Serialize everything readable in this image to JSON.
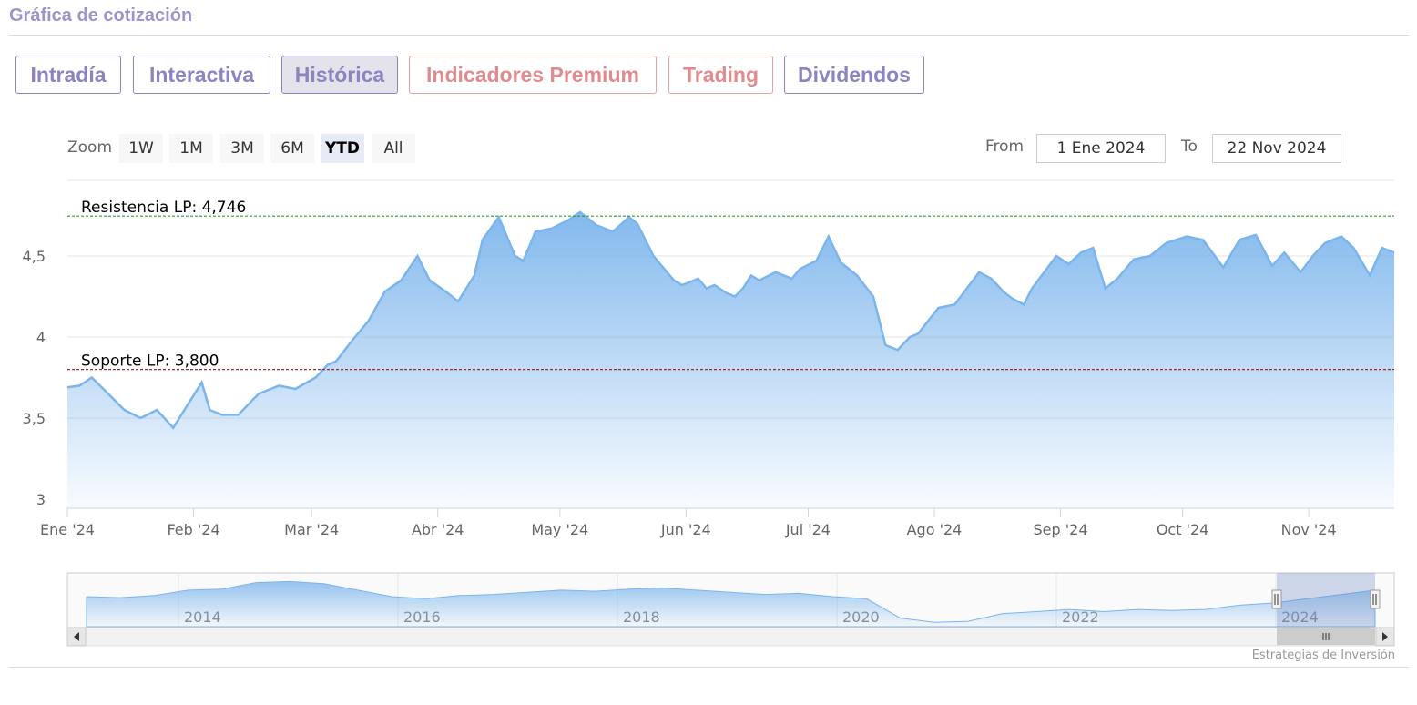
{
  "section_title": "Gráfica de cotización",
  "tabs": [
    {
      "label": "Intradía",
      "style": "purple",
      "active": false
    },
    {
      "label": "Interactiva",
      "style": "purple",
      "active": false
    },
    {
      "label": "Histórica",
      "style": "purple",
      "active": true
    },
    {
      "label": "Indicadores Premium",
      "style": "pink",
      "active": false
    },
    {
      "label": "Trading",
      "style": "pink",
      "active": false
    },
    {
      "label": "Dividendos",
      "style": "purple",
      "active": false
    }
  ],
  "zoom": {
    "label": "Zoom",
    "buttons": [
      "1W",
      "1M",
      "3M",
      "6M",
      "YTD",
      "All"
    ],
    "selected": "YTD"
  },
  "range": {
    "from_label": "From",
    "from_value": "1 Ene 2024",
    "to_label": "To",
    "to_value": "22 Nov 2024"
  },
  "credits": "Estrategias de Inversión",
  "colors": {
    "accent_purple": "#8a84bf",
    "accent_pink": "#e08b8f",
    "series": "#7cb5ec",
    "resistance": "#2ca02c",
    "support": "#a52a2a"
  },
  "chart_data": {
    "type": "area",
    "y_ticks": [
      "3",
      "3,5",
      "4",
      "4,5"
    ],
    "ylim": [
      3,
      5
    ],
    "x_ticks": [
      "Ene '24",
      "Feb '24",
      "Mar '24",
      "Abr '24",
      "May '24",
      "Jun '24",
      "Jul '24",
      "Ago '24",
      "Sep '24",
      "Oct '24",
      "Nov '24"
    ],
    "xlim_days": [
      0,
      326
    ],
    "series": [
      {
        "x_days": [
          0,
          3,
          6,
          10,
          14,
          18,
          22,
          26,
          30,
          33,
          35,
          38,
          42,
          47,
          52,
          56,
          61,
          64,
          66,
          70,
          74,
          78,
          82,
          86,
          89,
          93,
          96,
          100,
          102,
          106,
          110,
          112,
          115,
          119,
          123,
          126,
          130,
          134,
          138,
          140,
          144,
          149,
          151,
          153,
          155,
          157,
          159,
          162,
          164,
          166,
          168,
          170,
          174,
          178,
          180,
          184,
          187,
          190,
          194,
          198,
          201,
          204,
          207,
          209,
          214,
          218,
          221,
          224,
          227,
          230,
          232,
          235,
          237,
          240,
          243,
          246,
          249,
          252,
          255,
          258,
          262,
          266,
          270,
          275,
          279,
          284,
          288,
          292,
          296,
          299,
          303,
          306,
          309,
          313,
          316,
          320,
          323,
          326
        ],
        "values": [
          3.69,
          3.7,
          3.75,
          3.65,
          3.55,
          3.5,
          3.55,
          3.44,
          3.6,
          3.72,
          3.55,
          3.52,
          3.52,
          3.65,
          3.7,
          3.68,
          3.75,
          3.83,
          3.85,
          3.98,
          4.1,
          4.28,
          4.35,
          4.5,
          4.35,
          4.28,
          4.22,
          4.38,
          4.6,
          4.74,
          4.5,
          4.47,
          4.65,
          4.67,
          4.72,
          4.77,
          4.69,
          4.65,
          4.74,
          4.7,
          4.5,
          4.35,
          4.32,
          4.34,
          4.36,
          4.3,
          4.32,
          4.27,
          4.25,
          4.3,
          4.38,
          4.35,
          4.4,
          4.36,
          4.42,
          4.47,
          4.62,
          4.46,
          4.38,
          4.25,
          3.95,
          3.92,
          4.0,
          4.02,
          4.18,
          4.2,
          4.3,
          4.4,
          4.36,
          4.28,
          4.24,
          4.2,
          4.3,
          4.4,
          4.5,
          4.45,
          4.52,
          4.55,
          4.3,
          4.36,
          4.48,
          4.5,
          4.58,
          4.62,
          4.6,
          4.43,
          4.6,
          4.63,
          4.44,
          4.52,
          4.4,
          4.5,
          4.58,
          4.62,
          4.55,
          4.38,
          4.55,
          4.52
        ]
      }
    ],
    "lines": [
      {
        "label": "Resistencia LP: 4,746",
        "y": 4.746
      },
      {
        "label": "Soporte LP: 3,800",
        "y": 3.8
      }
    ],
    "navigator": {
      "year_labels": [
        "2014",
        "2016",
        "2018",
        "2020",
        "2022",
        "2024"
      ],
      "values": [
        3.9,
        3.85,
        3.95,
        4.2,
        4.25,
        4.55,
        4.6,
        4.5,
        4.2,
        3.9,
        3.8,
        3.95,
        4.0,
        4.1,
        4.2,
        4.15,
        4.25,
        4.3,
        4.2,
        4.1,
        4.0,
        4.05,
        3.9,
        3.8,
        2.9,
        2.7,
        2.75,
        3.1,
        3.2,
        3.3,
        3.2,
        3.3,
        3.25,
        3.3,
        3.5,
        3.6,
        3.8,
        4.0,
        4.2
      ]
    }
  }
}
